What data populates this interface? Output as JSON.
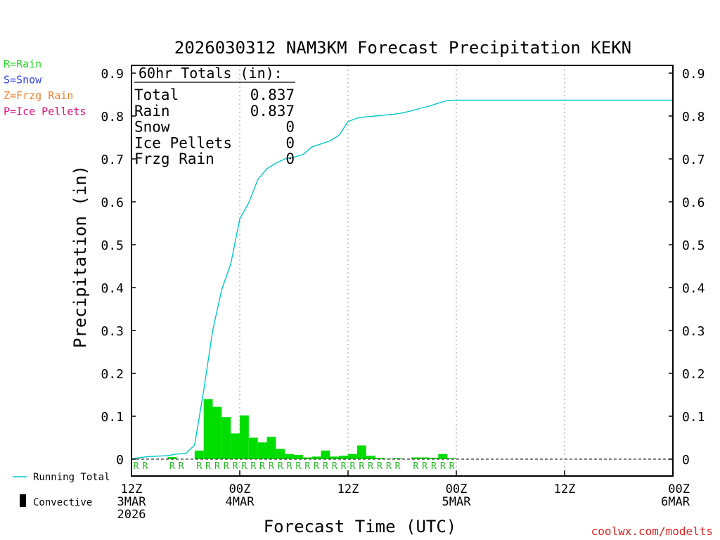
{
  "chart_data": {
    "type": "bar",
    "title": "2026030312 NAM3KM Forecast Precipitation KEKN",
    "xlabel": "Forecast Time (UTC)",
    "ylabel": "Precipitation (in)",
    "ylim": [
      0,
      0.9
    ],
    "xlim": [
      0,
      60
    ],
    "y_ticks": [
      "0",
      "0.1",
      "0.2",
      "0.3",
      "0.4",
      "0.5",
      "0.6",
      "0.7",
      "0.8",
      "0.9"
    ],
    "x_ticks": [
      {
        "hour": 0,
        "lines": [
          "12Z",
          "3MAR",
          "2026"
        ]
      },
      {
        "hour": 12,
        "lines": [
          "00Z",
          "4MAR"
        ]
      },
      {
        "hour": 24,
        "lines": [
          "12Z"
        ]
      },
      {
        "hour": 36,
        "lines": [
          "00Z",
          "5MAR"
        ]
      },
      {
        "hour": 48,
        "lines": [
          "12Z"
        ]
      },
      {
        "hour": 60,
        "lines": [
          "00Z",
          "6MAR"
        ]
      }
    ],
    "hours": [
      1,
      2,
      3,
      4,
      5,
      6,
      7,
      8,
      9,
      10,
      11,
      12,
      13,
      14,
      15,
      16,
      17,
      18,
      19,
      20,
      21,
      22,
      23,
      24,
      25,
      26,
      27,
      28,
      29,
      30,
      31,
      32,
      33,
      34,
      35,
      36
    ],
    "hourly_precip": [
      0.001,
      0,
      0,
      0,
      0.005,
      0,
      0,
      0.02,
      0.14,
      0.122,
      0.098,
      0.06,
      0.102,
      0.05,
      0.039,
      0.052,
      0.024,
      0.012,
      0.01,
      0.004,
      0.006,
      0.02,
      0.006,
      0.008,
      0.012,
      0.032,
      0.008,
      0.003,
      0.001,
      0.002,
      0,
      0.004,
      0.004,
      0.003,
      0.012,
      0.002
    ],
    "precip_types": [
      "R",
      "R",
      "",
      "",
      "R",
      "R",
      "",
      "R",
      "R",
      "R",
      "R",
      "R",
      "R",
      "R",
      "R",
      "R",
      "R",
      "R",
      "R",
      "R",
      "R",
      "R",
      "R",
      "R",
      "R",
      "R",
      "R",
      "R",
      "R",
      "R",
      "",
      "R",
      "R",
      "R",
      "R",
      "R"
    ],
    "running_total": [
      [
        0,
        0
      ],
      [
        1,
        0.004
      ],
      [
        2,
        0.006
      ],
      [
        3,
        0.007
      ],
      [
        4,
        0.008
      ],
      [
        5,
        0.012
      ],
      [
        6,
        0.013
      ],
      [
        7,
        0.033
      ],
      [
        8,
        0.16
      ],
      [
        9,
        0.3
      ],
      [
        10,
        0.395
      ],
      [
        11,
        0.455
      ],
      [
        12,
        0.56
      ],
      [
        13,
        0.598
      ],
      [
        14,
        0.652
      ],
      [
        15,
        0.677
      ],
      [
        16,
        0.69
      ],
      [
        17,
        0.7
      ],
      [
        18,
        0.704
      ],
      [
        19,
        0.71
      ],
      [
        20,
        0.728
      ],
      [
        21,
        0.735
      ],
      [
        22,
        0.742
      ],
      [
        23,
        0.755
      ],
      [
        24,
        0.787
      ],
      [
        25,
        0.795
      ],
      [
        26,
        0.798
      ],
      [
        27,
        0.8
      ],
      [
        28,
        0.802
      ],
      [
        29,
        0.804
      ],
      [
        30,
        0.807
      ],
      [
        31,
        0.812
      ],
      [
        32,
        0.818
      ],
      [
        33,
        0.823
      ],
      [
        34,
        0.83
      ],
      [
        35,
        0.836
      ],
      [
        36,
        0.837
      ],
      [
        60,
        0.837
      ]
    ],
    "totals": {
      "heading": "60hr Totals (in):",
      "rows": [
        {
          "label": "Total",
          "value": "0.837"
        },
        {
          "label": "Rain",
          "value": "0.837"
        },
        {
          "label": "Snow",
          "value": "0"
        },
        {
          "label": "Ice Pellets",
          "value": "0"
        },
        {
          "label": "Frzg Rain",
          "value": "0"
        }
      ]
    },
    "type_legend": [
      {
        "text": "R=Rain",
        "color": "#22dd22"
      },
      {
        "text": "S=Snow",
        "color": "#3344ee"
      },
      {
        "text": "Z=Frzg Rain",
        "color": "#f08030"
      },
      {
        "text": "P=Ice Pellets",
        "color": "#e0107a"
      }
    ],
    "series_legend": [
      {
        "text": "Running Total",
        "color": "#00c8c8"
      },
      {
        "text": "Convective",
        "color": "#000000"
      }
    ],
    "colors": {
      "bar": "#00dd00",
      "running_total": "#00c8c8",
      "rain_marker": "#22bb22",
      "credit": "#e02020"
    },
    "credit": "coolwx.com/modelts"
  }
}
